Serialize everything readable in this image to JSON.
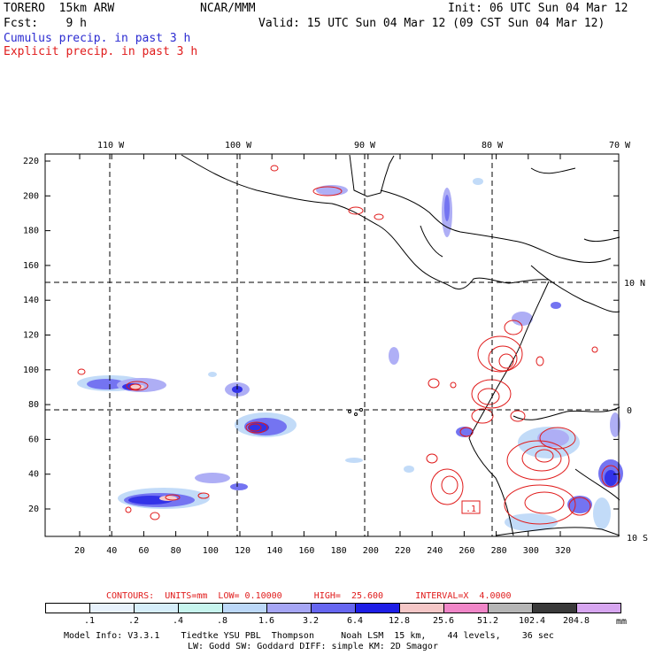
{
  "header": {
    "model": "TORERO  15km ARW",
    "org": "NCAR/MMM",
    "init": "Init: 06 UTC Sun 04 Mar 12",
    "fcst": "Fcst:    9 h",
    "valid": "Valid: 15 UTC Sun 04 Mar 12 (09 CST Sun 04 Mar 12)",
    "field1": "Cumulus precip. in past 3 h",
    "field2": "Explicit precip. in past 3 h"
  },
  "colors": {
    "field1": "#2b2bd1",
    "field2": "#e01b1b",
    "contour": "#e01b1b"
  },
  "map": {
    "lon_labels": [
      "110 W",
      "100 W",
      "90 W",
      "80 W",
      "70 W"
    ],
    "lat_labels": [
      "10 N",
      "0",
      "10 S"
    ],
    "x_ticks": [
      "20",
      "40",
      "60",
      "80",
      "100",
      "120",
      "140",
      "160",
      "180",
      "200",
      "220",
      "240",
      "260",
      "280",
      "300",
      "320"
    ],
    "y_ticks": [
      "20",
      "40",
      "60",
      "80",
      "100",
      "120",
      "140",
      "160",
      "180",
      "200",
      "220"
    ],
    "max_label": ".1"
  },
  "contour_info": {
    "text": "CONTOURS:  UNITS=mm  LOW= 0.10000      HIGH=  25.600      INTERVAL=X  4.0000"
  },
  "colorbar": {
    "colors": [
      "#ffffff",
      "#e8f2fc",
      "#d6eefa",
      "#c7f5ee",
      "#bcd8f8",
      "#a6a6f5",
      "#6666f0",
      "#1e1ee6",
      "#f5c7c7",
      "#f086c8",
      "#b5b5b5",
      "#3a3a3a",
      "#d7a6f0"
    ],
    "labels": [
      ".1",
      ".2",
      ".4",
      ".8",
      "1.6",
      "3.2",
      "6.4",
      "12.8",
      "25.6",
      "51.2",
      "102.4",
      "204.8"
    ],
    "units": "mm"
  },
  "footer": {
    "line1": "Model Info: V3.3.1    Tiedtke YSU PBL  Thompson     Noah LSM  15 km,    44 levels,    36 sec",
    "line2": "LW: Godd SW: Goddard DIFF: simple KM: 2D Smagor"
  }
}
